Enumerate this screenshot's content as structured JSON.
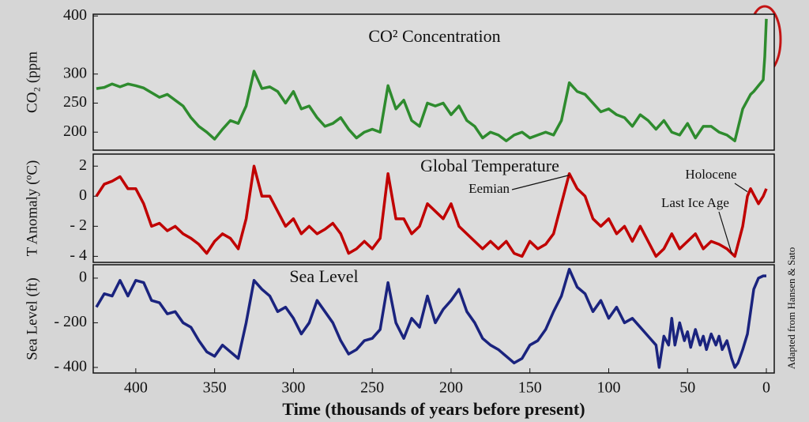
{
  "chart_data": [
    {
      "type": "line",
      "title": "CO² Concentration",
      "ylabel": "CO₂ (ppm",
      "color": "#2e8b2e",
      "xlim": [
        427,
        -5
      ],
      "ylim": [
        169,
        403
      ],
      "yticks": [
        200,
        250,
        300,
        400
      ],
      "x": [
        425,
        420,
        415,
        410,
        405,
        400,
        395,
        390,
        385,
        380,
        375,
        370,
        365,
        360,
        355,
        350,
        345,
        340,
        335,
        330,
        325,
        320,
        315,
        310,
        305,
        300,
        295,
        290,
        285,
        280,
        275,
        270,
        265,
        260,
        255,
        250,
        245,
        240,
        235,
        230,
        225,
        220,
        215,
        210,
        205,
        200,
        195,
        190,
        185,
        180,
        175,
        170,
        165,
        160,
        155,
        150,
        145,
        140,
        135,
        130,
        125,
        120,
        115,
        110,
        105,
        100,
        95,
        90,
        85,
        80,
        75,
        70,
        65,
        60,
        55,
        50,
        45,
        40,
        35,
        30,
        25,
        20,
        15,
        12,
        10,
        8,
        5,
        2,
        1,
        0
      ],
      "values": [
        275,
        277,
        283,
        278,
        283,
        280,
        276,
        268,
        260,
        265,
        255,
        245,
        225,
        210,
        200,
        188,
        205,
        220,
        215,
        245,
        305,
        275,
        278,
        270,
        250,
        270,
        240,
        245,
        225,
        210,
        215,
        225,
        205,
        190,
        200,
        205,
        200,
        280,
        240,
        255,
        220,
        210,
        250,
        245,
        250,
        230,
        245,
        220,
        210,
        190,
        200,
        195,
        185,
        195,
        200,
        190,
        195,
        200,
        195,
        220,
        285,
        270,
        265,
        250,
        235,
        240,
        230,
        225,
        210,
        230,
        220,
        205,
        220,
        200,
        195,
        215,
        190,
        210,
        210,
        200,
        195,
        185,
        240,
        255,
        265,
        270,
        280,
        290,
        330,
        395
      ]
    },
    {
      "type": "line",
      "title": "Global Temperature",
      "ylabel": "T Anomaly (ºC)",
      "color": "#c00000",
      "xlim": [
        427,
        -5
      ],
      "ylim": [
        -4.4,
        2.8
      ],
      "yticks": [
        2,
        0,
        {
          "value": -2,
          "label": "- 2"
        },
        {
          "value": -4,
          "label": "- 4"
        }
      ],
      "annotations": [
        "Eemian",
        "Last Ice Age",
        "Holocene"
      ],
      "x": [
        425,
        420,
        415,
        410,
        405,
        400,
        395,
        390,
        385,
        380,
        375,
        370,
        365,
        360,
        355,
        350,
        345,
        340,
        335,
        330,
        325,
        320,
        315,
        310,
        305,
        300,
        295,
        290,
        285,
        280,
        275,
        270,
        265,
        260,
        255,
        250,
        245,
        240,
        235,
        230,
        225,
        220,
        215,
        210,
        205,
        200,
        195,
        190,
        185,
        180,
        175,
        170,
        165,
        160,
        155,
        150,
        145,
        140,
        135,
        130,
        125,
        120,
        115,
        110,
        105,
        100,
        95,
        90,
        85,
        80,
        75,
        70,
        65,
        60,
        55,
        50,
        45,
        40,
        35,
        30,
        25,
        20,
        15,
        12,
        10,
        5,
        2,
        0
      ],
      "values": [
        0,
        0.8,
        1,
        1.3,
        0.5,
        0.5,
        -0.5,
        -2,
        -1.8,
        -2.3,
        -2,
        -2.5,
        -2.8,
        -3.2,
        -3.8,
        -3,
        -2.5,
        -2.8,
        -3.5,
        -1.5,
        2,
        0,
        0,
        -1,
        -2,
        -1.5,
        -2.5,
        -2,
        -2.5,
        -2.2,
        -1.8,
        -2.5,
        -3.8,
        -3.5,
        -3,
        -3.5,
        -2.8,
        1.5,
        -1.5,
        -1.5,
        -2.5,
        -2,
        -0.5,
        -1,
        -1.5,
        -0.5,
        -2,
        -2.5,
        -3,
        -3.5,
        -3,
        -3.5,
        -3,
        -3.8,
        -4,
        -3,
        -3.5,
        -3.2,
        -2.5,
        -0.5,
        1.5,
        0.5,
        0,
        -1.5,
        -2,
        -1.5,
        -2.5,
        -2,
        -3,
        -2,
        -3,
        -4,
        -3.5,
        -2.5,
        -3.5,
        -3,
        -2.5,
        -3.5,
        -3,
        -3.2,
        -3.5,
        -4,
        -2,
        0,
        0.5,
        -0.5,
        0,
        0.5
      ]
    },
    {
      "type": "line",
      "title": "Sea Level",
      "ylabel": "Sea Level (ft)",
      "color": "#1a237e",
      "xlabel": "Time (thousands of years before present)",
      "source": "Adapted from Hansen & Sato",
      "xlim": [
        427,
        -5
      ],
      "ylim": [
        -425,
        60
      ],
      "xticks": [
        400,
        350,
        300,
        250,
        200,
        150,
        100,
        50,
        0
      ],
      "yticks": [
        0,
        {
          "value": -200,
          "label": "- 200"
        },
        {
          "value": -400,
          "label": "- 400"
        }
      ],
      "x": [
        425,
        420,
        415,
        410,
        405,
        400,
        395,
        390,
        385,
        380,
        375,
        370,
        365,
        360,
        355,
        350,
        345,
        340,
        335,
        330,
        325,
        320,
        315,
        310,
        305,
        300,
        295,
        290,
        285,
        280,
        275,
        270,
        265,
        260,
        255,
        250,
        245,
        240,
        235,
        230,
        225,
        220,
        215,
        210,
        205,
        200,
        195,
        190,
        185,
        180,
        175,
        170,
        165,
        160,
        155,
        150,
        145,
        140,
        135,
        130,
        125,
        120,
        115,
        110,
        105,
        100,
        95,
        90,
        85,
        80,
        75,
        70,
        68,
        65,
        62,
        60,
        58,
        55,
        52,
        50,
        48,
        45,
        42,
        40,
        38,
        35,
        32,
        30,
        28,
        25,
        22,
        20,
        18,
        15,
        12,
        10,
        8,
        5,
        2,
        0
      ],
      "values": [
        -130,
        -70,
        -80,
        -10,
        -80,
        -10,
        -20,
        -100,
        -110,
        -160,
        -150,
        -200,
        -220,
        -280,
        -330,
        -350,
        -300,
        -330,
        -360,
        -200,
        -10,
        -50,
        -80,
        -150,
        -130,
        -180,
        -250,
        -200,
        -100,
        -150,
        -200,
        -280,
        -340,
        -320,
        -280,
        -270,
        -230,
        -20,
        -200,
        -270,
        -180,
        -220,
        -80,
        -200,
        -140,
        -100,
        -50,
        -150,
        -200,
        -270,
        -300,
        -320,
        -350,
        -380,
        -360,
        -300,
        -280,
        -230,
        -150,
        -80,
        40,
        -40,
        -70,
        -150,
        -100,
        -180,
        -130,
        -200,
        -180,
        -220,
        -260,
        -300,
        -400,
        -260,
        -300,
        -180,
        -300,
        -200,
        -280,
        -240,
        -310,
        -230,
        -300,
        -260,
        -320,
        -250,
        -300,
        -260,
        -320,
        -280,
        -360,
        -400,
        -380,
        -320,
        -250,
        -150,
        -50,
        0,
        10,
        10
      ]
    }
  ]
}
